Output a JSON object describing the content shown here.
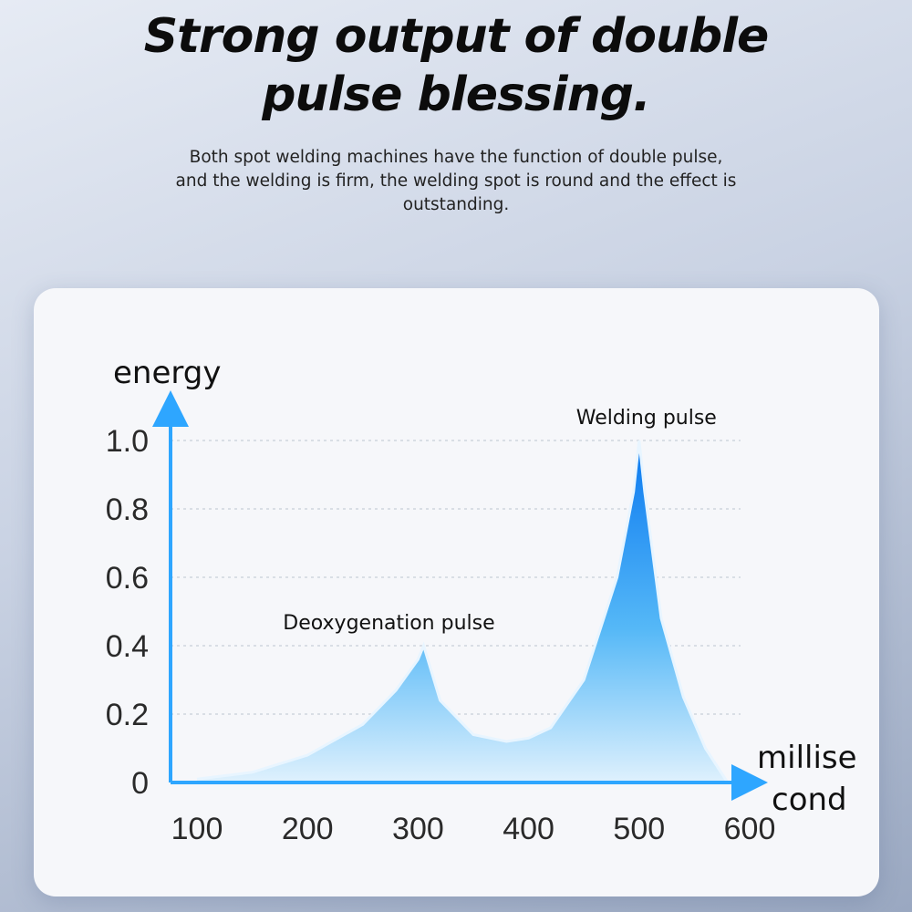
{
  "header": {
    "title_line1": "Strong output of double",
    "title_line2": "pulse blessing.",
    "subtitle_line1": "Both spot welding machines have the function of double pulse,",
    "subtitle_line2": "and the welding is firm, the welding spot is round and the effect is",
    "subtitle_line3": "outstanding."
  },
  "chart_data": {
    "type": "area",
    "ylabel": "energy",
    "xlabel_line1": "millise",
    "xlabel_line2": "cond",
    "x_ticks": [
      "100",
      "200",
      "300",
      "400",
      "500",
      "600"
    ],
    "y_ticks": [
      "0",
      "0.2",
      "0.4",
      "0.6",
      "0.8",
      "1.0"
    ],
    "xlim": [
      100,
      600
    ],
    "ylim": [
      0,
      1.0
    ],
    "grid": "horizontal dotted",
    "annotations": [
      {
        "text": "Deoxygenation pulse",
        "x": 305,
        "y": 0.4
      },
      {
        "text": "Welding pulse",
        "x": 500,
        "y": 1.0
      }
    ],
    "series": [
      {
        "x": [
          100,
          150,
          200,
          250,
          280,
          300,
          305,
          320,
          350,
          380,
          400,
          420,
          450,
          480,
          495,
          500,
          505,
          520,
          540,
          560,
          580
        ],
        "values": [
          0.01,
          0.03,
          0.08,
          0.17,
          0.27,
          0.36,
          0.4,
          0.24,
          0.14,
          0.12,
          0.13,
          0.16,
          0.3,
          0.6,
          0.85,
          1.0,
          0.85,
          0.48,
          0.25,
          0.1,
          0.0
        ]
      }
    ],
    "colors": {
      "axis": "#2ea6ff",
      "fill_top": "#0a78f0",
      "fill_bottom": "#dff1fd"
    }
  }
}
